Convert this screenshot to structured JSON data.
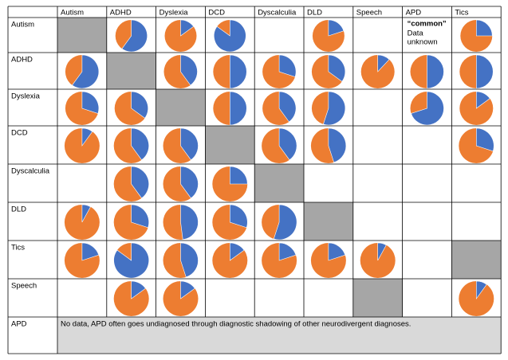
{
  "table": {
    "colors": {
      "share": "#4472c4",
      "rest": "#ed7d31",
      "diagonal": "#a6a6a6",
      "note": "#d9d9d9"
    },
    "columns": [
      "Autism",
      "ADHD",
      "Dyslexia",
      "DCD",
      "Dyscalculia",
      "DLD",
      "Speech",
      "APD",
      "Tics"
    ],
    "rows": [
      {
        "label": "Autism",
        "cells": [
          null,
          60,
          15,
          85,
          null,
          20,
          null,
          {
            "bold": "“common”",
            "text": "Data unknown"
          },
          25
        ]
      },
      {
        "label": "ADHD",
        "cells": [
          60,
          null,
          40,
          50,
          30,
          35,
          12,
          50,
          50
        ]
      },
      {
        "label": "Dyslexia",
        "cells": [
          30,
          35,
          null,
          50,
          40,
          55,
          null,
          70,
          15
        ]
      },
      {
        "label": "DCD",
        "cells": [
          10,
          40,
          40,
          null,
          40,
          45,
          null,
          null,
          30
        ]
      },
      {
        "label": "Dyscalculia",
        "cells": [
          null,
          40,
          40,
          25,
          null,
          null,
          null,
          null,
          null
        ]
      },
      {
        "label": "DLD",
        "cells": [
          8,
          30,
          48,
          30,
          55,
          null,
          null,
          null,
          null
        ]
      },
      {
        "label": "Tics",
        "cells": [
          20,
          85,
          45,
          15,
          20,
          20,
          8,
          null,
          null
        ]
      },
      {
        "label": "Speech",
        "cells": [
          null,
          15,
          15,
          null,
          null,
          null,
          null,
          null,
          10
        ]
      },
      {
        "label": "APD",
        "note": "No data, APD often goes undiagnosed through diagnostic shadowing of other neurodivergent diagnoses."
      }
    ]
  }
}
